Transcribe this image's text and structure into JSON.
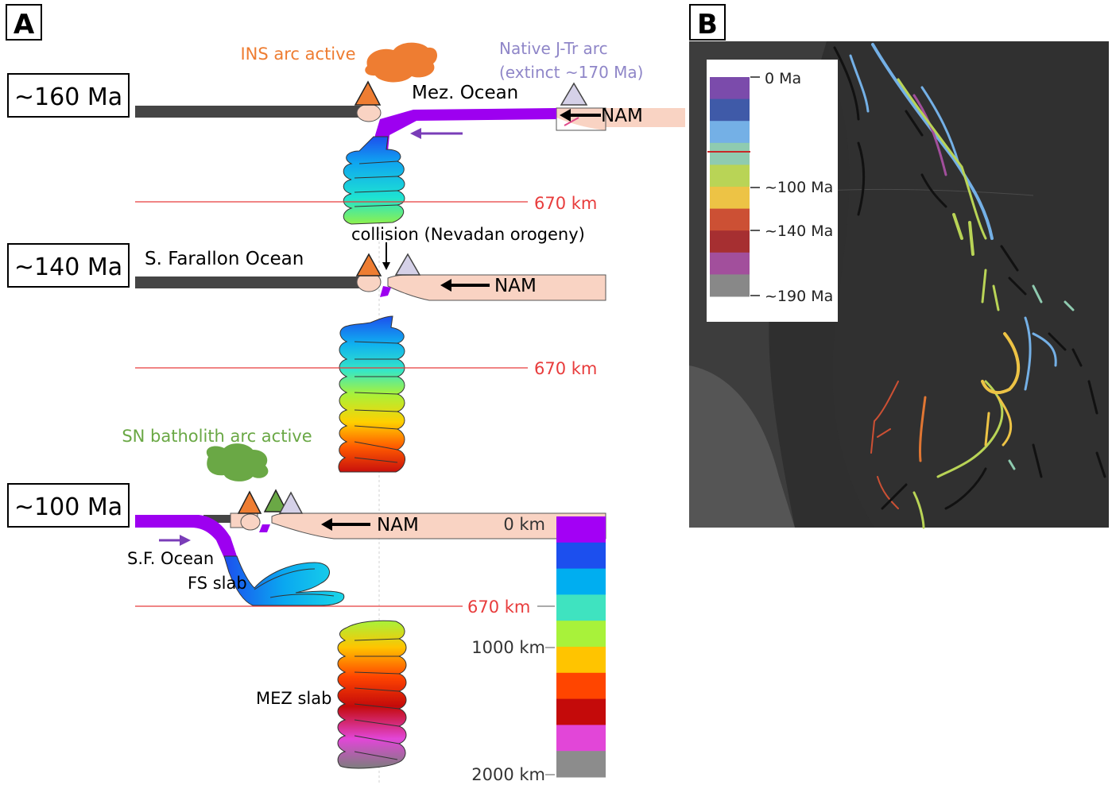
{
  "panel_a": {
    "label": "A",
    "stages": [
      {
        "age": "~160 Ma"
      },
      {
        "age": "~140 Ma"
      },
      {
        "age": "~100 Ma"
      }
    ],
    "ins_arc": "INS arc active",
    "native_arc_line1": "Native J-Tr arc",
    "native_arc_line2": "(extinct ~170 Ma)",
    "mez_ocean": "Mez. Ocean",
    "nam": "NAM",
    "depth_670": "670 km",
    "collision": "collision (Nevadan orogeny)",
    "sf_ocean_long": "S. Farallon Ocean",
    "sn_arc": "SN batholith arc active",
    "sf_ocean_short": "S.F. Ocean",
    "fs_slab": "FS slab",
    "mez_slab": "MEZ slab",
    "depth_scale": {
      "labels": [
        "0 km",
        "670 km",
        "1000 km",
        "2000 km"
      ],
      "colors": [
        "#a300f5",
        "#1c4fee",
        "#00aef0",
        "#3fe3c0",
        "#a8f23a",
        "#ffc400",
        "#ff4500",
        "#c40a0a",
        "#e246d8",
        "#8c8c8c"
      ]
    }
  },
  "panel_b": {
    "label": "B",
    "legend_labels": [
      "0 Ma",
      "~100 Ma",
      "~140 Ma",
      "~190 Ma"
    ],
    "legend_colors": [
      "#7b4bab",
      "#3f5aa8",
      "#74b0e6",
      "#8fcbb0",
      "#b9d456",
      "#edc345",
      "#cc5034",
      "#a62f31",
      "#a24f9c",
      "#888888"
    ]
  },
  "colors": {
    "ins_arc": "#ee7d32",
    "native_arc": "#8f86c8",
    "sn_arc": "#6aa845",
    "plate": "#f9d3c3",
    "ocean_plate": "#454545",
    "purple": "#9d00f0",
    "red_line": "#e83c3c"
  }
}
